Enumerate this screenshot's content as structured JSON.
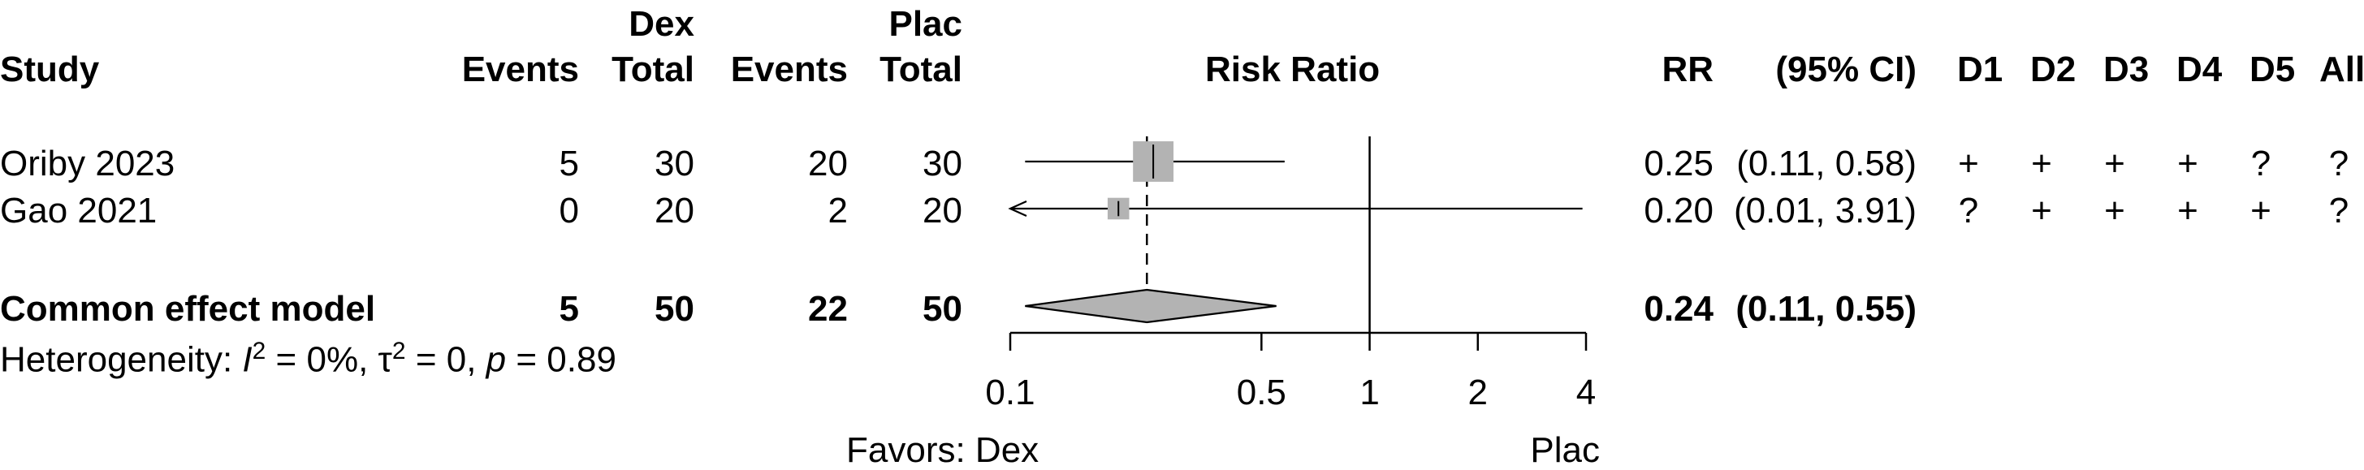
{
  "headers": {
    "study": "Study",
    "dex_group": "Dex",
    "dex_events": "Events",
    "dex_total": "Total",
    "plac_group": "Plac",
    "plac_events": "Events",
    "plac_total": "Total",
    "risk_ratio": "Risk Ratio",
    "rr": "RR",
    "ci": "(95% CI)",
    "d1": "D1",
    "d2": "D2",
    "d3": "D3",
    "d4": "D4",
    "d5": "D5",
    "all": "All"
  },
  "studies": [
    {
      "name": "Oriby 2023",
      "dex_events": "5",
      "dex_total": "30",
      "plac_events": "20",
      "plac_total": "30",
      "rr": "0.25",
      "ci": "(0.11, 0.58)",
      "d1": "+",
      "d2": "+",
      "d3": "+",
      "d4": "+",
      "d5": "?",
      "all": "?"
    },
    {
      "name": "Gao 2021",
      "dex_events": "0",
      "dex_total": "20",
      "plac_events": "2",
      "plac_total": "20",
      "rr": "0.20",
      "ci": "(0.01, 3.91)",
      "d1": "?",
      "d2": "+",
      "d3": "+",
      "d4": "+",
      "d5": "+",
      "all": "?"
    }
  ],
  "pooled": {
    "name": "Common effect model",
    "dex_events": "5",
    "dex_total": "50",
    "plac_events": "22",
    "plac_total": "50",
    "rr": "0.24",
    "ci": "(0.11, 0.55)"
  },
  "heterogeneity": {
    "prefix": "Heterogeneity: ",
    "i2_symbol": "I",
    "i2_value": " = 0%, ",
    "tau_symbol": "τ",
    "tau_value": " = 0, ",
    "p_symbol": "p",
    "p_value": " = 0.89"
  },
  "axis": {
    "favors_left": "Favors: Dex",
    "favors_right": "Plac"
  },
  "chart_data": {
    "type": "forest",
    "title": "Risk Ratio",
    "x_scale": "log",
    "xlim": [
      0.1,
      4
    ],
    "x_ticks": [
      0.1,
      0.5,
      1,
      2,
      4
    ],
    "x_tick_labels": [
      "0.1",
      "0.5",
      "1",
      "2",
      "4"
    ],
    "null_value": 1,
    "studies": [
      {
        "name": "Oriby 2023",
        "rr": 0.25,
        "lower": 0.11,
        "upper": 0.58,
        "weight": 0.89
      },
      {
        "name": "Gao 2021",
        "rr": 0.2,
        "lower": 0.01,
        "upper": 3.91,
        "weight": 0.11
      }
    ],
    "pooled": {
      "name": "Common effect model",
      "rr": 0.24,
      "lower": 0.11,
      "upper": 0.55
    },
    "colors": {
      "box": "#b3b3b3",
      "diamond": "#b3b3b3",
      "line": "#000000"
    }
  }
}
